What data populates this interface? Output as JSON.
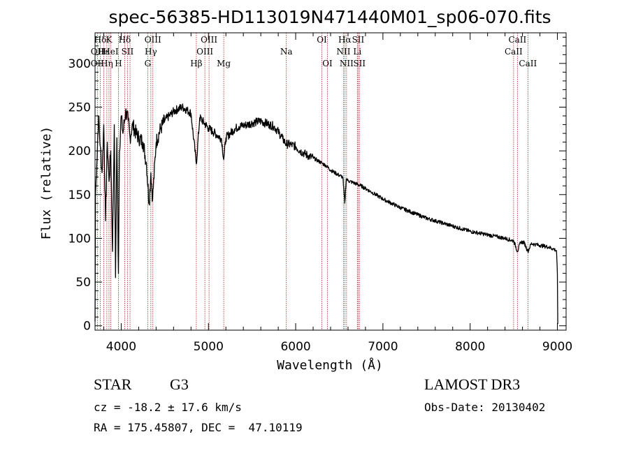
{
  "chart_data": {
    "type": "line",
    "title": "spec-56385-HD113019N471440M01_sp06-070.fits",
    "xlabel": "Wavelength (Å)",
    "ylabel": "Flux (relative)",
    "xlim": [
      3700,
      9100
    ],
    "ylim": [
      -5,
      335
    ],
    "xticks": [
      4000,
      5000,
      6000,
      7000,
      8000,
      9000
    ],
    "yticks": [
      0,
      50,
      100,
      150,
      200,
      250,
      300
    ],
    "xtick_labels": [
      "4000",
      "5000",
      "6000",
      "7000",
      "8000",
      "9000"
    ],
    "ytick_labels": [
      "0",
      "50",
      "100",
      "150",
      "200",
      "250",
      "300"
    ],
    "series": [
      {
        "name": "flux",
        "x": [
          3700,
          3705,
          3720,
          3740,
          3760,
          3780,
          3800,
          3820,
          3840,
          3860,
          3880,
          3900,
          3920,
          3935,
          3950,
          3968,
          3980,
          4000,
          4020,
          4050,
          4080,
          4101,
          4130,
          4170,
          4200,
          4250,
          4290,
          4320,
          4340,
          4360,
          4400,
          4450,
          4500,
          4550,
          4600,
          4650,
          4700,
          4750,
          4800,
          4861,
          4900,
          4950,
          5000,
          5050,
          5100,
          5150,
          5175,
          5200,
          5250,
          5300,
          5350,
          5400,
          5450,
          5500,
          5550,
          5600,
          5650,
          5700,
          5750,
          5800,
          5850,
          5890,
          5950,
          6000,
          6050,
          6100,
          6150,
          6200,
          6250,
          6300,
          6350,
          6400,
          6450,
          6500,
          6540,
          6563,
          6580,
          6600,
          6650,
          6700,
          6750,
          6800,
          6850,
          6900,
          6950,
          7000,
          7100,
          7200,
          7300,
          7400,
          7500,
          7600,
          7700,
          7800,
          7900,
          8000,
          8100,
          8200,
          8300,
          8400,
          8500,
          8542,
          8580,
          8620,
          8662,
          8700,
          8750,
          8800,
          8850,
          8900,
          8950,
          8990,
          9000,
          9005
        ],
        "values": [
          5,
          150,
          185,
          240,
          205,
          175,
          230,
          120,
          210,
          165,
          200,
          85,
          230,
          55,
          215,
          60,
          200,
          240,
          220,
          245,
          235,
          215,
          230,
          220,
          215,
          210,
          185,
          140,
          175,
          145,
          210,
          225,
          235,
          240,
          245,
          248,
          250,
          247,
          243,
          185,
          238,
          232,
          226,
          222,
          218,
          214,
          190,
          215,
          220,
          225,
          228,
          229,
          230,
          232,
          233,
          234,
          232,
          230,
          228,
          222,
          214,
          208,
          207,
          205,
          200,
          197,
          194,
          192,
          189,
          186,
          183,
          178,
          175,
          172,
          170,
          140,
          168,
          166,
          164,
          162,
          160,
          157,
          154,
          151,
          148,
          145,
          140,
          135,
          131,
          127,
          123,
          120,
          117,
          114,
          111,
          108,
          106,
          104,
          102,
          100,
          97,
          85,
          96,
          95,
          85,
          94,
          93,
          92,
          91,
          90,
          88,
          86,
          60,
          2
        ]
      }
    ],
    "line_labels": [
      {
        "text": "Hδ",
        "wavelength": 3760,
        "row": 0
      },
      {
        "text": "K",
        "wavelength": 3860,
        "row": 0
      },
      {
        "text": "Hδ",
        "wavelength": 4040,
        "row": 0
      },
      {
        "text": "OIII",
        "wavelength": 4363,
        "row": 0
      },
      {
        "text": "OIII",
        "wavelength": 5007,
        "row": 0
      },
      {
        "text": "OI",
        "wavelength": 6300,
        "row": 0
      },
      {
        "text": "Hα",
        "wavelength": 6563,
        "row": 0
      },
      {
        "text": "SII",
        "wavelength": 6716,
        "row": 0
      },
      {
        "text": "CaII",
        "wavelength": 8542,
        "row": 0
      },
      {
        "text": "OII",
        "wavelength": 3727,
        "row": 1
      },
      {
        "text": "Hε",
        "wavelength": 3800,
        "row": 1
      },
      {
        "text": "HeI",
        "wavelength": 3880,
        "row": 1
      },
      {
        "text": "SII",
        "wavelength": 4072,
        "row": 1
      },
      {
        "text": "Hγ",
        "wavelength": 4340,
        "row": 1
      },
      {
        "text": "OIII",
        "wavelength": 4959,
        "row": 1
      },
      {
        "text": "Na",
        "wavelength": 5893,
        "row": 1
      },
      {
        "text": "NII",
        "wavelength": 6548,
        "row": 1
      },
      {
        "text": "Li",
        "wavelength": 6707,
        "row": 1
      },
      {
        "text": "CaII",
        "wavelength": 8498,
        "row": 1
      },
      {
        "text": "OII",
        "wavelength": 3727,
        "row": 2
      },
      {
        "text": "Hη",
        "wavelength": 3835,
        "row": 2
      },
      {
        "text": "H",
        "wavelength": 3968,
        "row": 2
      },
      {
        "text": "G",
        "wavelength": 4304,
        "row": 2
      },
      {
        "text": "Hβ",
        "wavelength": 4861,
        "row": 2
      },
      {
        "text": "Mg",
        "wavelength": 5175,
        "row": 2
      },
      {
        "text": "OI",
        "wavelength": 6364,
        "row": 2
      },
      {
        "text": "NII",
        "wavelength": 6583,
        "row": 2
      },
      {
        "text": "SII",
        "wavelength": 6731,
        "row": 2
      },
      {
        "text": "CaII",
        "wavelength": 8662,
        "row": 2
      }
    ],
    "marker_lines": [
      3727,
      3760,
      3800,
      3835,
      3860,
      3880,
      3968,
      4040,
      4072,
      4101,
      4304,
      4340,
      4363,
      4861,
      4959,
      5007,
      5175,
      5893,
      6300,
      6364,
      6548,
      6563,
      6583,
      6707,
      6716,
      6731,
      8498,
      8542,
      8662
    ],
    "marker_color": "#b22222",
    "line_color": "#000000"
  },
  "info": {
    "object_class": "STAR",
    "subclass": "G3",
    "survey": "LAMOST DR3",
    "redshift": "cz = -18.2 ± 17.6 km/s",
    "obs_date": "Obs-Date: 20130402",
    "coords": "RA = 175.45807, DEC =  47.10119"
  }
}
